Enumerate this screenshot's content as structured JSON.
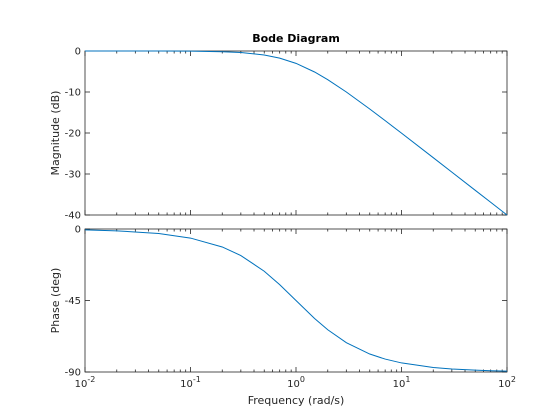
{
  "chart_data": [
    {
      "type": "line",
      "title": "Bode Diagram",
      "ylabel": "Magnitude (dB)",
      "xscale": "log",
      "xlim": [
        0.01,
        100
      ],
      "ylim": [
        -40,
        0
      ],
      "yticks": [
        0,
        -10,
        -20,
        -30,
        -40
      ],
      "ytick_labels": [
        "0",
        "-10",
        "-20",
        "-30",
        "-40"
      ],
      "grid": false,
      "color": "#0072BD",
      "series": [
        {
          "x": [
            0.01,
            0.02,
            0.05,
            0.1,
            0.2,
            0.3,
            0.5,
            0.7,
            1,
            1.5,
            2,
            3,
            5,
            7,
            10,
            20,
            30,
            50,
            70,
            100
          ],
          "y": [
            0,
            0,
            -0.01,
            -0.04,
            -0.17,
            -0.37,
            -0.97,
            -1.73,
            -3.01,
            -5.12,
            -6.99,
            -10.0,
            -14.15,
            -16.99,
            -20.04,
            -26.02,
            -29.54,
            -33.98,
            -36.9,
            -40.0
          ]
        }
      ]
    },
    {
      "type": "line",
      "ylabel": "Phase (deg)",
      "xlabel": "Frequency  (rad/s)",
      "xscale": "log",
      "xlim": [
        0.01,
        100
      ],
      "xticks": [
        0.01,
        0.1,
        1,
        10,
        100
      ],
      "xtick_labels": [
        [
          "10",
          "-2"
        ],
        [
          "10",
          "-1"
        ],
        [
          "10",
          "0"
        ],
        [
          "10",
          "1"
        ],
        [
          "10",
          "2"
        ]
      ],
      "ylim": [
        -90,
        0
      ],
      "yticks": [
        0,
        -45,
        -90
      ],
      "ytick_labels": [
        "0",
        "-45",
        "-90"
      ],
      "grid": false,
      "color": "#0072BD",
      "series": [
        {
          "x": [
            0.01,
            0.02,
            0.05,
            0.1,
            0.2,
            0.3,
            0.5,
            0.7,
            1,
            1.5,
            2,
            3,
            5,
            7,
            10,
            20,
            30,
            50,
            70,
            100
          ],
          "y": [
            -0.57,
            -1.15,
            -2.86,
            -5.71,
            -11.31,
            -16.7,
            -26.57,
            -34.99,
            -45.0,
            -56.31,
            -63.43,
            -71.57,
            -78.69,
            -81.87,
            -84.29,
            -87.14,
            -88.09,
            -88.85,
            -89.18,
            -89.43
          ]
        }
      ]
    }
  ]
}
